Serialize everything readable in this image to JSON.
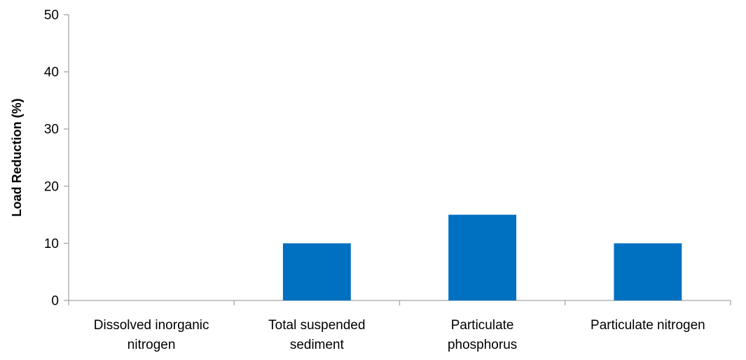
{
  "chart_data": {
    "type": "bar",
    "title": "",
    "xlabel": "",
    "ylabel": "Load Reduction (%)",
    "categories": [
      [
        "Dissolved inorganic",
        "nitrogen"
      ],
      [
        "Total suspended",
        "sediment"
      ],
      [
        "Particulate",
        "phosphorus"
      ],
      [
        "Particulate nitrogen"
      ]
    ],
    "values": [
      0,
      10,
      15,
      10
    ],
    "ylim": [
      0,
      50
    ],
    "yticks": [
      "0",
      "10",
      "20",
      "30",
      "40",
      "50"
    ],
    "grid": false,
    "legend": "none",
    "bar_color": "#0070C0",
    "axis_color": "#A6A6A6"
  }
}
